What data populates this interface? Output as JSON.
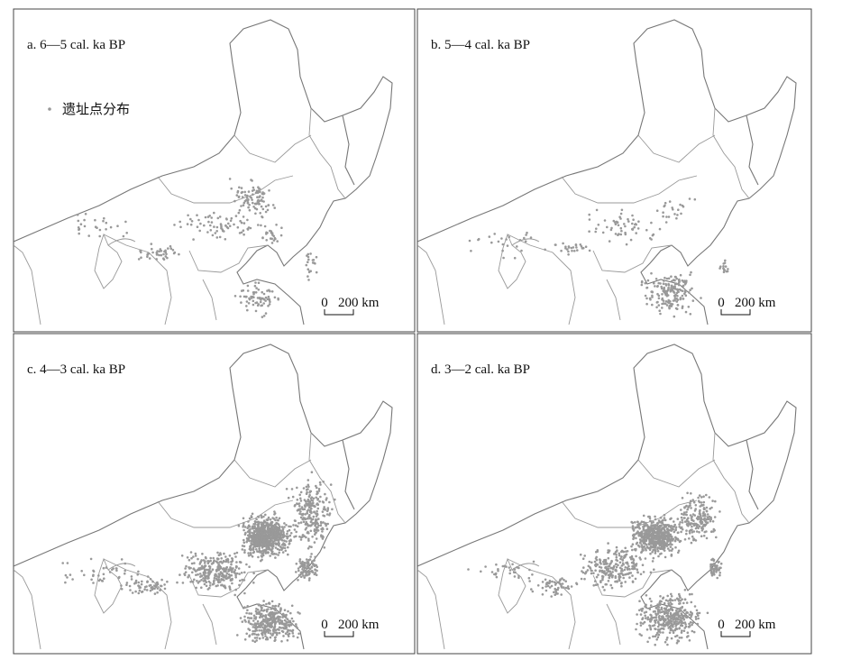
{
  "panels": [
    {
      "title": "a. 6—5 cal. ka BP",
      "legend": "遗址点分布",
      "scale": {
        "zero": "0",
        "distance": "200 km"
      }
    },
    {
      "title": "b. 5—4 cal. ka BP",
      "scale": {
        "zero": "0",
        "distance": "200 km"
      }
    },
    {
      "title": "c. 4—3 cal. ka BP",
      "scale": {
        "zero": "0",
        "distance": "200 km"
      }
    },
    {
      "title": "d. 3—2 cal. ka BP",
      "scale": {
        "zero": "0",
        "distance": "200 km"
      }
    }
  ]
}
